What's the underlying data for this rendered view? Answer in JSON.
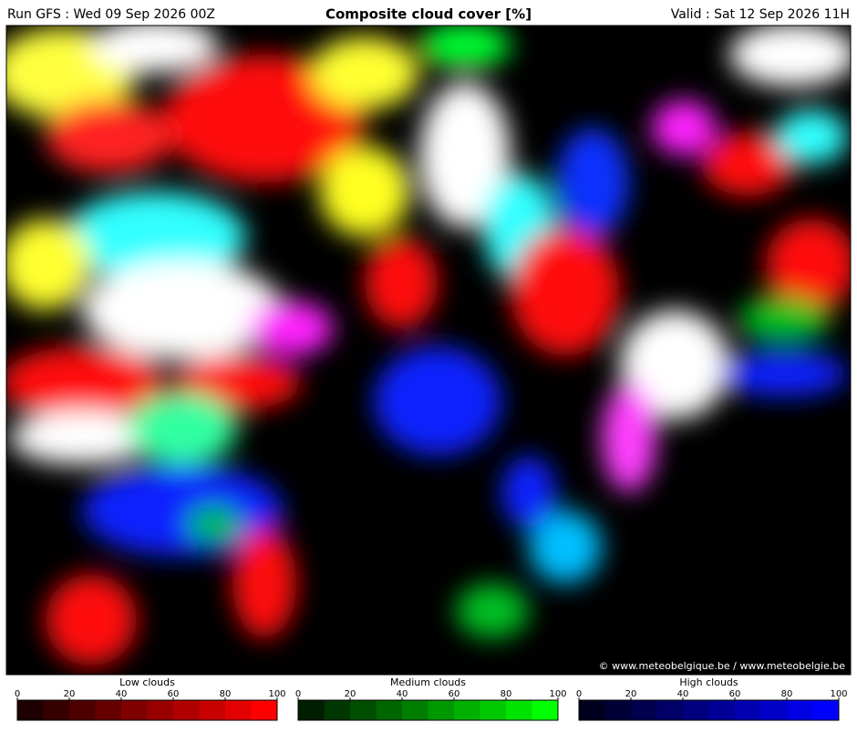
{
  "header": {
    "run": "Run GFS : Wed 09 Sep 2026 00Z",
    "title": "Composite cloud cover [%]",
    "valid": "Valid : Sat 12 Sep 2026 11H"
  },
  "map": {
    "credit": "© www.meteobelgique.be / www.meteobelgie.be"
  },
  "legends": [
    {
      "title": "Low clouds",
      "ticks": [
        0,
        20,
        40,
        60,
        80,
        100
      ],
      "colors": [
        "#1e0000",
        "#360000",
        "#4e0000",
        "#660000",
        "#7e0000",
        "#980000",
        "#b00000",
        "#c80000",
        "#e20000",
        "#ff0000"
      ]
    },
    {
      "title": "Medium clouds",
      "ticks": [
        0,
        20,
        40,
        60,
        80,
        100
      ],
      "colors": [
        "#001e00",
        "#003600",
        "#004e00",
        "#006600",
        "#007e00",
        "#009800",
        "#00b000",
        "#00c800",
        "#00e200",
        "#00ff00"
      ]
    },
    {
      "title": "High clouds",
      "ticks": [
        0,
        20,
        40,
        60,
        80,
        100
      ],
      "colors": [
        "#00001e",
        "#000036",
        "#00004e",
        "#000066",
        "#00007e",
        "#000098",
        "#0000b0",
        "#0000c8",
        "#0000e2",
        "#0000ff"
      ]
    }
  ]
}
